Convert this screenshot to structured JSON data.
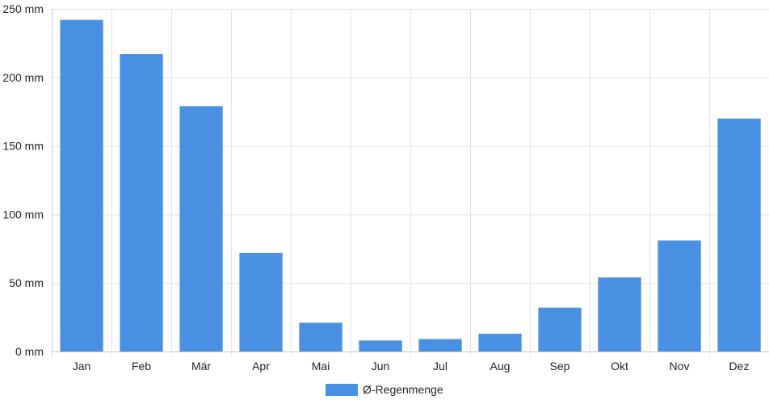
{
  "chart_data": {
    "type": "bar",
    "categories": [
      "Jan",
      "Feb",
      "Mär",
      "Apr",
      "Mai",
      "Jun",
      "Jul",
      "Aug",
      "Sep",
      "Okt",
      "Nov",
      "Dez"
    ],
    "series": [
      {
        "name": "Ø-Regenmenge",
        "values": [
          242,
          217,
          179,
          72,
          21,
          8,
          9,
          13,
          32,
          54,
          81,
          170
        ],
        "color": "#4a90e2"
      }
    ],
    "ylim": [
      0,
      250
    ],
    "yticks": [
      0,
      50,
      100,
      150,
      200,
      250
    ],
    "y_tick_labels": [
      "0 mm",
      "50 mm",
      "100 mm",
      "150 mm",
      "200 mm",
      "250 mm"
    ],
    "grid": true,
    "legend_position": "bottom-center"
  }
}
